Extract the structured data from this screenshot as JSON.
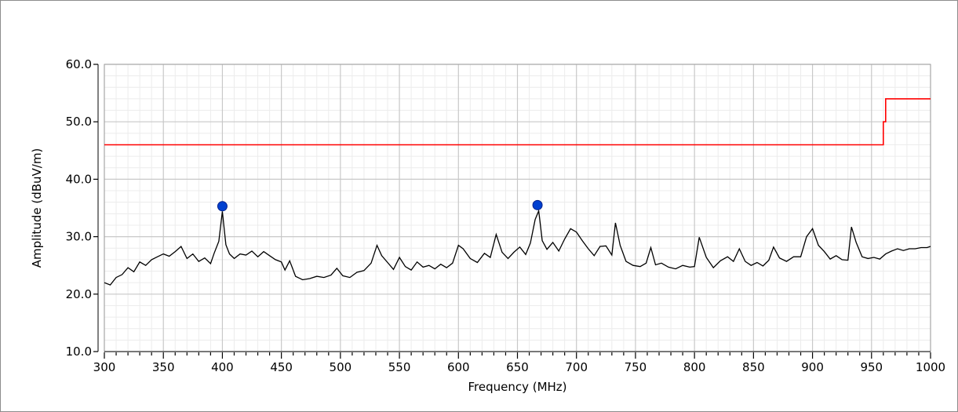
{
  "chart_data": {
    "type": "line",
    "title": "",
    "xlabel": "Frequency (MHz)",
    "ylabel": "Amplitude (dBuV/m)",
    "xlim": [
      300,
      1000
    ],
    "ylim": [
      10,
      60
    ],
    "x_ticks": [
      300,
      350,
      400,
      450,
      500,
      550,
      600,
      650,
      700,
      750,
      800,
      850,
      900,
      950,
      1000
    ],
    "x_tick_labels": [
      "300",
      "350",
      "400",
      "450",
      "500",
      "550",
      "600",
      "650",
      "700",
      "750",
      "800",
      "850",
      "900",
      "950",
      "1000"
    ],
    "y_ticks": [
      10,
      20,
      30,
      40,
      50,
      60
    ],
    "y_tick_labels": [
      "10.0",
      "20.0",
      "30.0",
      "40.0",
      "50.0",
      "60.0"
    ],
    "grid": true,
    "minor_grid": true,
    "background": "#ffffff",
    "grid_color": "#c8c8c8",
    "minor_grid_color": "#ececec",
    "series": [
      {
        "color": "#ff0000",
        "style": "step",
        "x": [
          300,
          960,
          960,
          962,
          962,
          1000
        ],
        "y": [
          46,
          46,
          50,
          50,
          54,
          54
        ]
      },
      {
        "color": "#000000",
        "style": "line",
        "x": [
          300,
          305,
          310,
          315,
          320,
          325,
          330,
          335,
          340,
          345,
          350,
          355,
          360,
          365,
          370,
          375,
          380,
          385,
          390,
          393,
          397,
          400,
          403,
          406,
          410,
          415,
          420,
          425,
          430,
          435,
          440,
          445,
          450,
          453,
          457,
          462,
          468,
          474,
          480,
          486,
          492,
          497,
          502,
          508,
          514,
          520,
          526,
          531,
          535,
          540,
          545,
          550,
          555,
          560,
          565,
          570,
          575,
          580,
          585,
          590,
          595,
          600,
          604,
          610,
          616,
          622,
          627,
          632,
          637,
          642,
          647,
          652,
          657,
          661,
          665,
          668,
          671,
          675,
          680,
          685,
          690,
          695,
          700,
          705,
          710,
          715,
          720,
          725,
          730,
          733,
          737,
          742,
          748,
          754,
          759,
          763,
          767,
          772,
          778,
          784,
          790,
          796,
          800,
          804,
          810,
          816,
          822,
          828,
          833,
          838,
          843,
          848,
          853,
          858,
          863,
          867,
          872,
          878,
          884,
          890,
          895,
          900,
          905,
          910,
          915,
          920,
          925,
          930,
          933,
          937,
          942,
          947,
          952,
          957,
          962,
          967,
          972,
          977,
          982,
          987,
          992,
          997,
          1000
        ],
        "y": [
          22.0,
          21.6,
          22.9,
          23.4,
          24.6,
          23.9,
          25.6,
          25.0,
          26.0,
          26.5,
          27.0,
          26.6,
          27.4,
          28.3,
          26.2,
          27.0,
          25.7,
          26.3,
          25.3,
          27.1,
          29.2,
          34.4,
          28.6,
          27.0,
          26.2,
          27.0,
          26.8,
          27.5,
          26.5,
          27.4,
          26.7,
          26.0,
          25.6,
          24.2,
          25.8,
          23.1,
          22.5,
          22.7,
          23.1,
          22.9,
          23.3,
          24.5,
          23.2,
          22.9,
          23.8,
          24.1,
          25.4,
          28.5,
          26.7,
          25.5,
          24.3,
          26.4,
          24.8,
          24.2,
          25.6,
          24.7,
          25.0,
          24.4,
          25.2,
          24.6,
          25.4,
          28.5,
          27.9,
          26.2,
          25.5,
          27.1,
          26.4,
          30.4,
          27.3,
          26.2,
          27.3,
          28.2,
          26.9,
          28.9,
          33.0,
          34.5,
          29.3,
          27.8,
          29.0,
          27.5,
          29.6,
          31.4,
          30.8,
          29.3,
          27.9,
          26.7,
          28.3,
          28.4,
          26.8,
          32.4,
          28.5,
          25.7,
          25.0,
          24.8,
          25.4,
          28.1,
          25.1,
          25.4,
          24.7,
          24.4,
          25.0,
          24.7,
          24.8,
          29.9,
          26.4,
          24.6,
          25.8,
          26.5,
          25.7,
          27.9,
          25.7,
          25.0,
          25.5,
          24.9,
          25.9,
          28.2,
          26.3,
          25.7,
          26.5,
          26.5,
          30.0,
          31.4,
          28.5,
          27.4,
          26.1,
          26.7,
          26.0,
          25.9,
          31.7,
          29.0,
          26.5,
          26.2,
          26.4,
          26.1,
          27.0,
          27.5,
          27.9,
          27.6,
          27.9,
          27.9,
          28.1,
          28.1,
          28.3
        ]
      }
    ],
    "markers": [
      {
        "x": 400,
        "y": 35.3,
        "color": "#0040d0"
      },
      {
        "x": 667,
        "y": 35.5,
        "color": "#0040d0"
      }
    ]
  }
}
